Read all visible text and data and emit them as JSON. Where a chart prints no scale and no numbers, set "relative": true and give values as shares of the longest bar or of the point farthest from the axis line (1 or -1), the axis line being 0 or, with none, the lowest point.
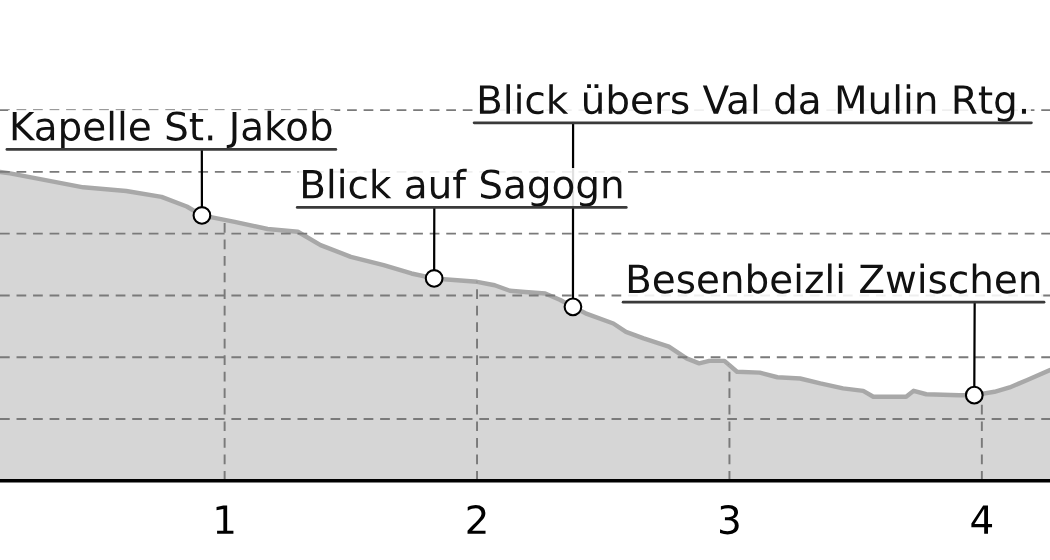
{
  "chart_data": {
    "type": "area",
    "relative": true,
    "x": [
      0.11,
      0.15,
      0.28,
      0.44,
      0.61,
      0.75,
      0.85,
      0.91,
      1.04,
      1.17,
      1.29,
      1.38,
      1.5,
      1.63,
      1.74,
      1.83,
      2.0,
      2.07,
      2.13,
      2.19,
      2.27,
      2.33,
      2.38,
      2.43,
      2.54,
      2.59,
      2.66,
      2.76,
      2.83,
      2.88,
      2.92,
      2.98,
      3.03,
      3.12,
      3.19,
      3.28,
      3.36,
      3.45,
      3.53,
      3.57,
      3.7,
      3.73,
      3.78,
      3.91,
      3.97,
      4.05,
      4.11,
      4.18,
      4.27
    ],
    "series": [
      {
        "color": "#a8a8a8",
        "values": [
          1.0,
          0.995,
          0.975,
          0.95,
          0.938,
          0.919,
          0.888,
          0.859,
          0.838,
          0.815,
          0.806,
          0.763,
          0.725,
          0.698,
          0.671,
          0.655,
          0.644,
          0.633,
          0.615,
          0.611,
          0.606,
          0.585,
          0.563,
          0.542,
          0.509,
          0.482,
          0.461,
          0.434,
          0.396,
          0.38,
          0.388,
          0.388,
          0.353,
          0.35,
          0.335,
          0.331,
          0.315,
          0.299,
          0.291,
          0.272,
          0.272,
          0.291,
          0.28,
          0.277,
          0.277,
          0.288,
          0.302,
          0.326,
          0.358
        ]
      }
    ],
    "xlim": [
      0.11,
      4.27
    ],
    "xticks": [
      1,
      2,
      3,
      4
    ],
    "grid": true,
    "tick_labels": "x",
    "annotations": [
      {
        "text": "Kapelle St. Jakob",
        "x": 0.91,
        "y": 0.859
      },
      {
        "text": "Blick auf Sagogn",
        "x": 1.83,
        "y": 0.655
      },
      {
        "text": "Blick übers Val da Mulin Rtg.",
        "x": 2.38,
        "y": 0.563
      },
      {
        "text": "Besenbeizli Zwischen",
        "x": 3.97,
        "y": 0.277
      }
    ]
  }
}
